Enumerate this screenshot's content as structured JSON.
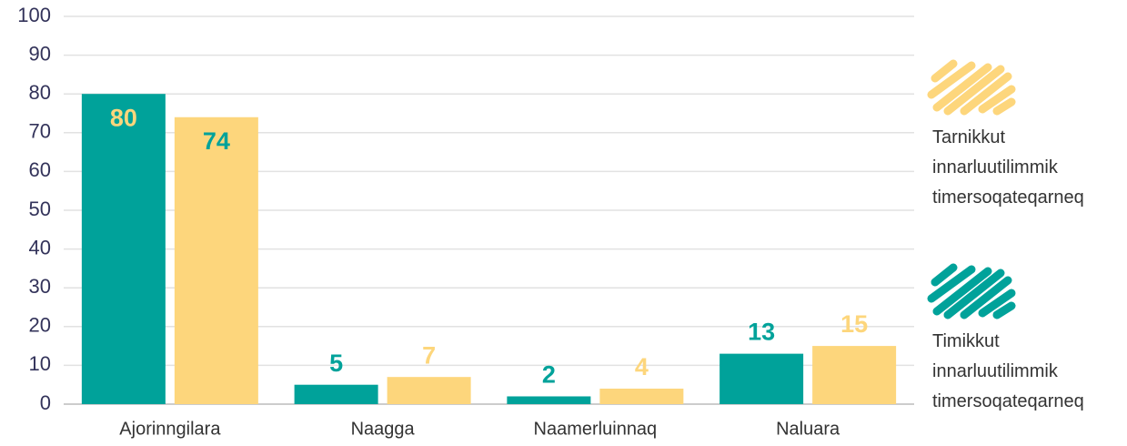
{
  "chart_data": {
    "type": "bar",
    "categories": [
      "Ajorinngilara",
      "Naagga",
      "Naamerluinnaq",
      "Naluara"
    ],
    "series": [
      {
        "name": "Timikkut innarluutilimmik timersoqateqarneq",
        "color": "#00a29a",
        "values": [
          80,
          5,
          2,
          13
        ]
      },
      {
        "name": "Tarnikkut innarluutilimmik timersoqateqarneq",
        "color": "#fdd67c",
        "values": [
          74,
          7,
          4,
          15
        ]
      }
    ],
    "ylim": [
      0,
      100
    ],
    "yticks": [
      0,
      10,
      20,
      30,
      40,
      50,
      60,
      70,
      80,
      90,
      100
    ],
    "grid": true
  }
}
